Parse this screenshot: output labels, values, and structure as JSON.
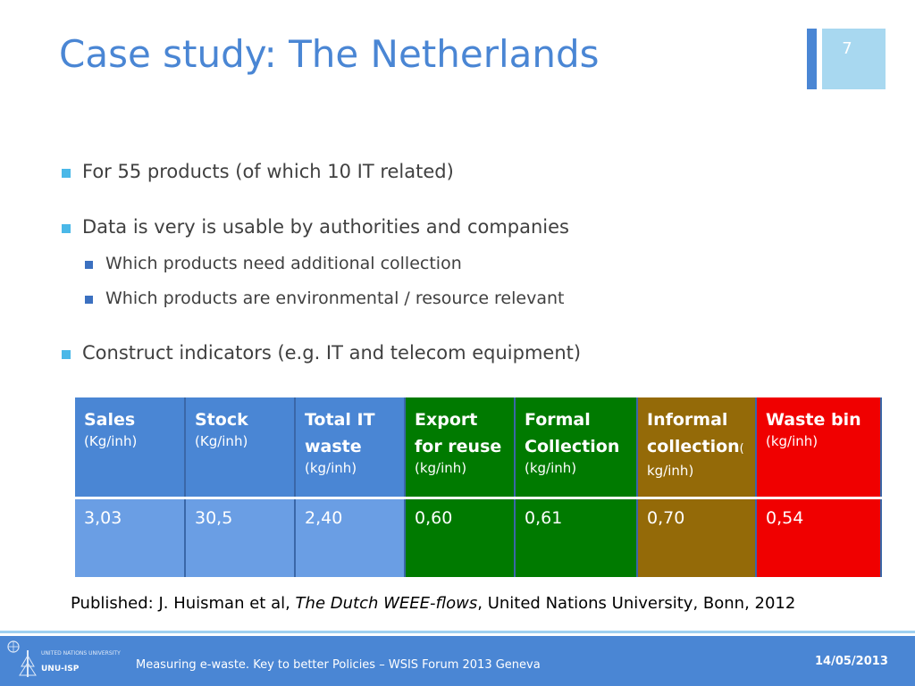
{
  "slide": {
    "title": "Case study: The Netherlands",
    "number": "7"
  },
  "bullets": {
    "b1": "For 55 products (of which 10 IT related)",
    "b2": "Data is very is usable by authorities and companies",
    "b2a": "Which products need additional collection",
    "b2b": "Which products are environmental / resource relevant",
    "b3": "Construct indicators (e.g. IT and telecom equipment)"
  },
  "table": {
    "columns": [
      {
        "name_l1": "Sales",
        "name_l2": "",
        "unit": "(Kg/inh)",
        "value": "3,03",
        "color": "#4a86d4"
      },
      {
        "name_l1": "Stock",
        "name_l2": "",
        "unit": "(Kg/inh)",
        "value": "30,5",
        "color": "#4a86d4"
      },
      {
        "name_l1": "Total IT",
        "name_l2": "waste",
        "unit": "(kg/inh)",
        "value": "2,40",
        "color": "#4a86d4"
      },
      {
        "name_l1": "Export",
        "name_l2": "for reuse",
        "unit": "(kg/inh)",
        "value": "0,60",
        "color": "#007a00"
      },
      {
        "name_l1": "Formal",
        "name_l2": "Collection",
        "unit": "(kg/inh)",
        "value": "0,61",
        "color": "#007a00"
      },
      {
        "name_l1": "Informal",
        "name_l2": "collection",
        "unit_pre": "(",
        "unit": "kg/inh)",
        "value": "0,70",
        "color": "#946a08"
      },
      {
        "name_l1": "Waste bin",
        "name_l2": "",
        "unit": "(kg/inh)",
        "value": "0,54",
        "color": "#f00000"
      }
    ]
  },
  "citation": {
    "prefix": "Published: J. Huisman et al, ",
    "title": "The Dutch WEEE-flows",
    "suffix": ", United Nations University, Bonn, 2012"
  },
  "footer": {
    "text": "Measuring e-waste. Key to better Policies – WSIS Forum 2013 Geneva",
    "date": "14/05/2013",
    "logo_line1": "UNITED NATIONS UNIVERSITY",
    "logo_line2": "UNU-ISP"
  }
}
